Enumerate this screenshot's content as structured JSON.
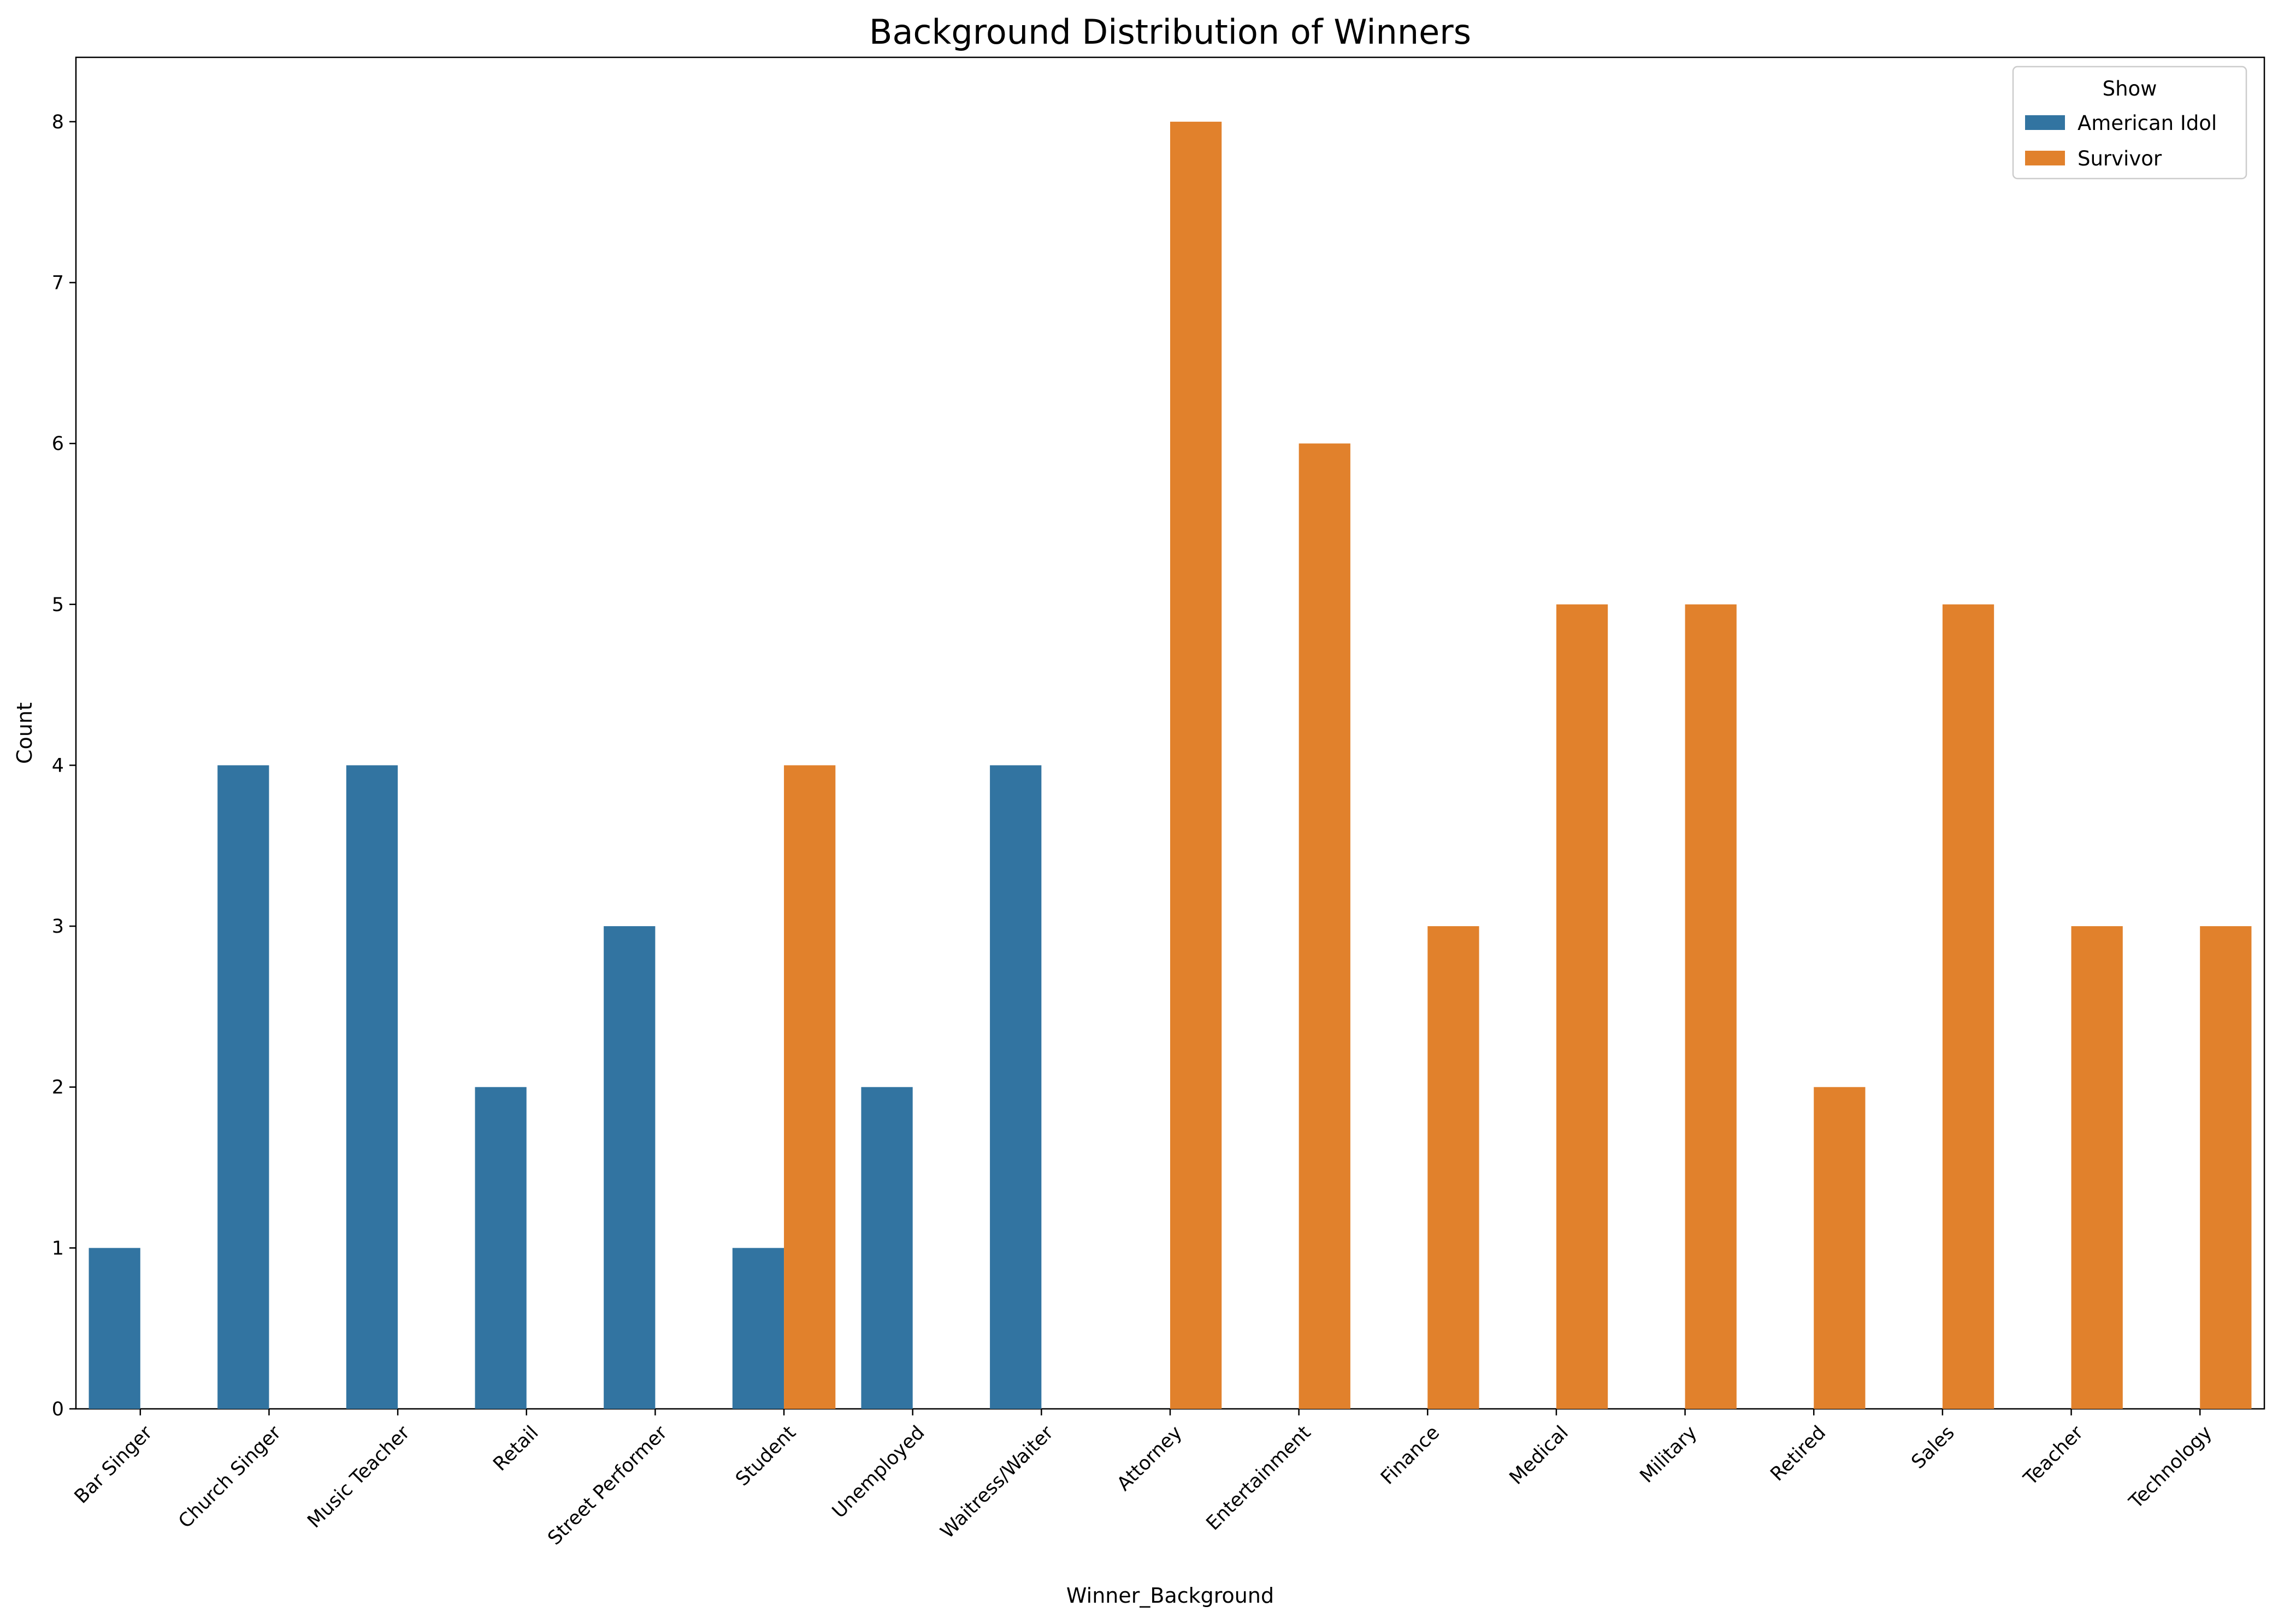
{
  "chart_data": {
    "type": "bar",
    "title": "Background Distribution of Winners",
    "xlabel": "Winner_Background",
    "ylabel": "Count",
    "ylim": [
      0,
      8.4
    ],
    "yticks": [
      0,
      1,
      2,
      3,
      4,
      5,
      6,
      7,
      8
    ],
    "categories": [
      "Bar Singer",
      "Church Singer",
      "Music Teacher",
      "Retail",
      "Street Performer",
      "Student",
      "Unemployed",
      "Waitress/Waiter",
      "Attorney",
      "Entertainment",
      "Finance",
      "Medical",
      "Military",
      "Retired",
      "Sales",
      "Teacher",
      "Technology"
    ],
    "series": [
      {
        "name": "American Idol",
        "color": "#3274a1",
        "values": [
          1,
          4,
          4,
          2,
          3,
          1,
          2,
          4,
          null,
          null,
          null,
          null,
          null,
          null,
          null,
          null,
          null
        ]
      },
      {
        "name": "Survivor",
        "color": "#e1812c",
        "values": [
          null,
          null,
          null,
          null,
          null,
          4,
          null,
          null,
          8,
          6,
          3,
          5,
          5,
          2,
          5,
          3,
          3
        ]
      }
    ],
    "legend": {
      "title": "Show",
      "placement": "top-right"
    },
    "grid": false
  }
}
